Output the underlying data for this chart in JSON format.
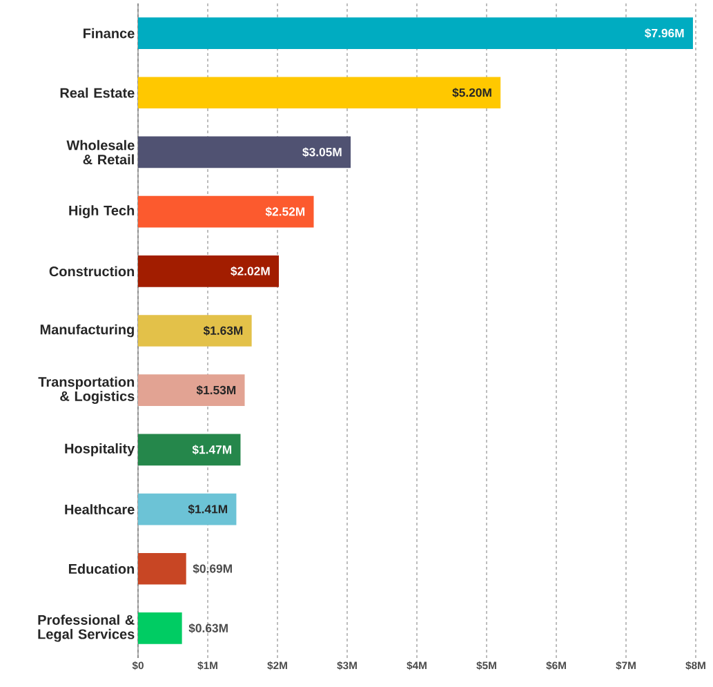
{
  "chart_data": {
    "type": "bar",
    "orientation": "horizontal",
    "categories": [
      "Finance",
      "Real Estate",
      "Wholesale & Retail",
      "High Tech",
      "Construction",
      "Manufacturing",
      "Transportation & Logistics",
      "Hospitality",
      "Healthcare",
      "Education",
      "Professional & Legal Services"
    ],
    "values": [
      7.96,
      5.2,
      3.05,
      2.52,
      2.02,
      1.63,
      1.53,
      1.47,
      1.41,
      0.69,
      0.63
    ],
    "value_labels": [
      "$7.96M",
      "$5.20M",
      "$3.05M",
      "$2.52M",
      "$2.02M",
      "$1.63M",
      "$1.53M",
      "$1.47M",
      "$1.41M",
      "$0.69M",
      "$0.63M"
    ],
    "colors": [
      "#00acc1",
      "#ffc800",
      "#505272",
      "#fc5a2e",
      "#a21d00",
      "#e3c149",
      "#e2a393",
      "#25874b",
      "#6cc3d6",
      "#c84624",
      "#00cc63"
    ],
    "xlim": [
      0,
      8
    ],
    "xticks": [
      {
        "value": 0,
        "label": "$0"
      },
      {
        "value": 1,
        "label": "$1M"
      },
      {
        "value": 2,
        "label": "$2M"
      },
      {
        "value": 3,
        "label": "$3M"
      },
      {
        "value": 4,
        "label": "$4M"
      },
      {
        "value": 5,
        "label": "$5M"
      },
      {
        "value": 6,
        "label": "$6M"
      },
      {
        "value": 7,
        "label": "$7M"
      },
      {
        "value": 8,
        "label": "$8M"
      }
    ],
    "grid": "x"
  }
}
